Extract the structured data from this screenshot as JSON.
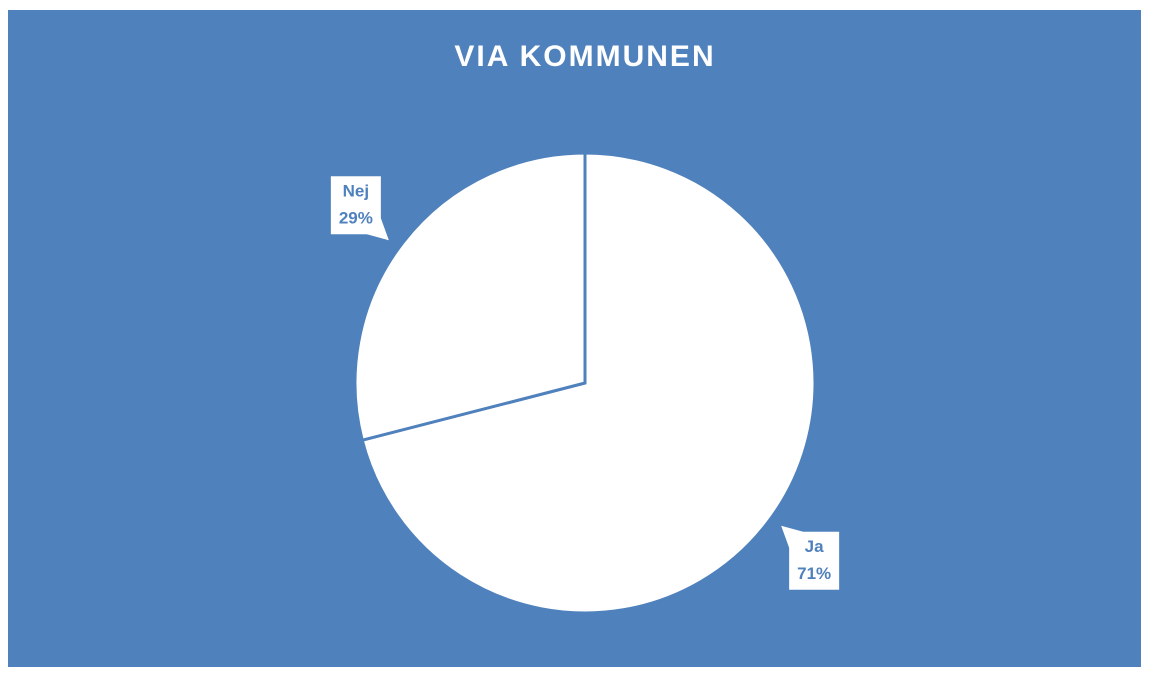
{
  "chart_data": {
    "type": "pie",
    "title": "VIA KOMMUNEN",
    "categories": [
      "Ja",
      "Nej"
    ],
    "values": [
      71,
      29
    ],
    "value_labels": [
      "71%",
      "29%"
    ],
    "colors": [
      "#ffffff",
      "#ffffff"
    ]
  }
}
